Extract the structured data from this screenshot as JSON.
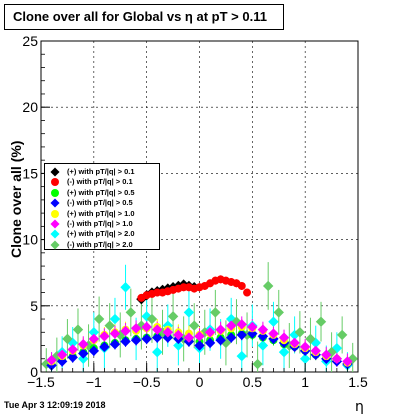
{
  "title": "Clone  over all for Global vs   η at pT > 0.11",
  "timestamp": "Tue Apr  3 12:09:19 2018",
  "chart_data": {
    "type": "scatter",
    "title": "Clone  over all for Global vs   η at pT > 0.11",
    "xlabel": "η",
    "ylabel": "Clone  over all (%)",
    "xlim": [
      -1.5,
      1.5
    ],
    "ylim": [
      0,
      25
    ],
    "x_ticks": [
      -1.5,
      -1,
      -0.5,
      0,
      0.5,
      1,
      1.5
    ],
    "x_tick_labels": [
      "−1.5",
      "−1",
      "−0.5",
      "0",
      "0.5",
      "1",
      "1.5"
    ],
    "y_ticks": [
      0,
      5,
      10,
      15,
      20,
      25
    ],
    "y_tick_labels": [
      "0",
      "5",
      "10",
      "15",
      "20",
      "25"
    ],
    "grid": true,
    "legend_position": "left-middle",
    "series": [
      {
        "name": "(+) with pT/|q| > 0.1",
        "color": "#000000",
        "marker": "diamond",
        "x": [
          -0.55,
          -0.5,
          -0.45,
          -0.4,
          -0.35,
          -0.3,
          -0.25,
          -0.2,
          -0.15,
          -0.1,
          -0.05
        ],
        "y": [
          5.5,
          5.8,
          6.0,
          6.1,
          6.2,
          6.3,
          6.4,
          6.5,
          6.6,
          6.5,
          6.4
        ],
        "err": [
          0.3,
          0.3,
          0.3,
          0.3,
          0.3,
          0.3,
          0.3,
          0.3,
          0.3,
          0.3,
          0.3
        ]
      },
      {
        "name": "(-) with pT/|q| > 0.1",
        "color": "#ff0000",
        "marker": "circle",
        "x": [
          -0.55,
          -0.5,
          -0.45,
          -0.4,
          -0.35,
          -0.3,
          -0.25,
          -0.2,
          -0.15,
          -0.1,
          -0.05,
          0.0,
          0.05,
          0.1,
          0.15,
          0.2,
          0.25,
          0.3,
          0.35,
          0.4,
          0.45
        ],
        "y": [
          5.6,
          5.8,
          5.9,
          6.0,
          6.0,
          6.1,
          6.2,
          6.3,
          6.4,
          6.4,
          6.3,
          6.4,
          6.5,
          6.7,
          6.9,
          7.0,
          6.9,
          6.8,
          6.7,
          6.5,
          6.0
        ],
        "err": [
          0.3,
          0.3,
          0.3,
          0.3,
          0.3,
          0.3,
          0.3,
          0.3,
          0.3,
          0.3,
          0.3,
          0.3,
          0.3,
          0.3,
          0.3,
          0.3,
          0.3,
          0.3,
          0.3,
          0.3,
          0.3
        ]
      },
      {
        "name": "(+) with pT/|q| > 0.5",
        "color": "#00ff00",
        "marker": "circle",
        "x": [
          -1.4,
          -1.3,
          -1.2,
          -1.1,
          -1.0,
          -0.9,
          -0.8,
          -0.7,
          -0.6,
          -0.5,
          -0.4,
          -0.3,
          -0.2,
          -0.1,
          0.0,
          0.1,
          0.2,
          0.3,
          0.4,
          0.5,
          0.6,
          0.7,
          0.8,
          0.9,
          1.0,
          1.1,
          1.2,
          1.3,
          1.4
        ],
        "y": [
          0.6,
          0.9,
          1.2,
          1.5,
          1.8,
          2.0,
          2.2,
          2.4,
          2.5,
          2.6,
          2.7,
          2.7,
          2.6,
          2.5,
          2.3,
          2.4,
          2.6,
          2.8,
          2.9,
          2.8,
          2.6,
          2.4,
          2.1,
          1.9,
          1.6,
          1.3,
          1.1,
          0.9,
          0.7
        ],
        "err": [
          0.4,
          0.4,
          0.4,
          0.4,
          0.4,
          0.4,
          0.4,
          0.4,
          0.4,
          0.4,
          0.4,
          0.4,
          0.4,
          0.4,
          0.4,
          0.4,
          0.4,
          0.4,
          0.4,
          0.4,
          0.4,
          0.4,
          0.4,
          0.4,
          0.4,
          0.4,
          0.4,
          0.4,
          0.4
        ]
      },
      {
        "name": "(-) with pT/|q| > 0.5",
        "color": "#0000ff",
        "marker": "diamond",
        "x": [
          -1.4,
          -1.3,
          -1.2,
          -1.1,
          -1.0,
          -0.9,
          -0.8,
          -0.7,
          -0.6,
          -0.5,
          -0.4,
          -0.3,
          -0.2,
          -0.1,
          0.0,
          0.1,
          0.2,
          0.3,
          0.4,
          0.5,
          0.6,
          0.7,
          0.8,
          0.9,
          1.0,
          1.1,
          1.2,
          1.3,
          1.4
        ],
        "y": [
          0.5,
          0.8,
          1.1,
          1.4,
          1.6,
          1.9,
          2.1,
          2.3,
          2.4,
          2.5,
          2.6,
          2.6,
          2.5,
          2.3,
          2.0,
          2.2,
          2.4,
          2.6,
          2.8,
          2.9,
          2.7,
          2.5,
          2.2,
          1.9,
          1.6,
          1.3,
          1.0,
          0.8,
          0.6
        ],
        "err": [
          0.4,
          0.4,
          0.4,
          0.4,
          0.4,
          0.4,
          0.4,
          0.4,
          0.4,
          0.4,
          0.4,
          0.4,
          0.4,
          0.4,
          0.4,
          0.4,
          0.4,
          0.4,
          0.4,
          0.4,
          0.4,
          0.4,
          0.4,
          0.4,
          0.4,
          0.4,
          0.4,
          0.4,
          0.4
        ]
      },
      {
        "name": "(+) with pT/|q| > 1.0",
        "color": "#ffff00",
        "marker": "circle",
        "x": [
          -1.4,
          -1.3,
          -1.2,
          -1.1,
          -1.0,
          -0.9,
          -0.8,
          -0.7,
          -0.6,
          -0.5,
          -0.4,
          -0.3,
          -0.2,
          -0.1,
          0.0,
          0.1,
          0.2,
          0.3,
          0.4,
          0.5,
          0.6,
          0.7,
          0.8,
          0.9,
          1.0,
          1.1,
          1.2,
          1.3,
          1.4
        ],
        "y": [
          0.8,
          1.2,
          1.6,
          2.0,
          2.4,
          2.8,
          3.0,
          3.2,
          3.1,
          3.3,
          3.4,
          3.2,
          3.0,
          2.9,
          2.8,
          2.9,
          3.1,
          3.3,
          3.4,
          3.3,
          3.1,
          2.8,
          2.4,
          2.1,
          1.8,
          1.5,
          1.2,
          1.0,
          0.7
        ],
        "err": [
          0.6,
          0.6,
          0.6,
          0.6,
          0.6,
          0.6,
          0.6,
          0.6,
          0.6,
          0.6,
          0.6,
          0.6,
          0.6,
          0.6,
          0.6,
          0.6,
          0.6,
          0.6,
          0.6,
          0.6,
          0.6,
          0.6,
          0.6,
          0.6,
          0.6,
          0.6,
          0.6,
          0.6,
          0.6
        ]
      },
      {
        "name": "(-) with pT/|q| > 1.0",
        "color": "#ff00ff",
        "marker": "diamond",
        "x": [
          -1.4,
          -1.3,
          -1.2,
          -1.1,
          -1.0,
          -0.9,
          -0.8,
          -0.7,
          -0.6,
          -0.5,
          -0.4,
          -0.3,
          -0.2,
          -0.1,
          0.0,
          0.1,
          0.2,
          0.3,
          0.4,
          0.5,
          0.6,
          0.7,
          0.8,
          0.9,
          1.0,
          1.1,
          1.2,
          1.3,
          1.4
        ],
        "y": [
          0.9,
          1.3,
          1.7,
          2.1,
          2.5,
          2.7,
          2.9,
          3.1,
          3.3,
          3.4,
          3.2,
          3.0,
          2.8,
          2.6,
          2.7,
          3.0,
          3.2,
          3.5,
          3.6,
          3.4,
          3.2,
          2.9,
          2.6,
          2.2,
          1.9,
          1.6,
          1.3,
          1.0,
          0.8
        ],
        "err": [
          0.6,
          0.6,
          0.6,
          0.6,
          0.6,
          0.6,
          0.6,
          0.6,
          0.6,
          0.6,
          0.6,
          0.6,
          0.6,
          0.6,
          0.6,
          0.6,
          0.6,
          0.6,
          0.6,
          0.6,
          0.6,
          0.6,
          0.6,
          0.6,
          0.6,
          0.6,
          0.6,
          0.6,
          0.6
        ]
      },
      {
        "name": "(+) with pT/|q| > 2.0",
        "color": "#00ffff",
        "marker": "diamond",
        "x": [
          -1.4,
          -1.3,
          -1.2,
          -1.1,
          -1.0,
          -0.9,
          -0.8,
          -0.7,
          -0.6,
          -0.5,
          -0.4,
          -0.3,
          -0.2,
          -0.1,
          0.0,
          0.1,
          0.2,
          0.3,
          0.4,
          0.5,
          0.6,
          0.7,
          0.8,
          0.9,
          1.0,
          1.1,
          1.2,
          1.3,
          1.4
        ],
        "y": [
          0.5,
          1.5,
          2.2,
          1.0,
          3.0,
          1.8,
          4.0,
          6.4,
          2.5,
          4.2,
          1.5,
          3.5,
          2.0,
          4.5,
          1.8,
          3.2,
          2.5,
          4.0,
          1.2,
          3.5,
          2.0,
          3.8,
          1.5,
          2.8,
          1.0,
          2.2,
          0.8,
          1.8,
          0.5
        ],
        "err": [
          1.0,
          1.2,
          1.2,
          1.3,
          1.5,
          1.5,
          1.6,
          1.7,
          1.6,
          1.7,
          1.6,
          1.6,
          1.5,
          1.6,
          1.5,
          1.6,
          1.5,
          1.6,
          1.5,
          1.6,
          1.5,
          1.5,
          1.4,
          1.4,
          1.3,
          1.3,
          1.2,
          1.2,
          1.0
        ]
      },
      {
        "name": "(-) with pT/|q| > 2.0",
        "color": "#66cc66",
        "marker": "diamond",
        "x": [
          -1.45,
          -1.35,
          -1.25,
          -1.15,
          -1.05,
          -0.95,
          -0.85,
          -0.75,
          -0.65,
          -0.55,
          -0.45,
          -0.35,
          -0.25,
          -0.15,
          -0.05,
          0.05,
          0.15,
          0.25,
          0.35,
          0.45,
          0.55,
          0.65,
          0.75,
          0.85,
          0.95,
          1.05,
          1.15,
          1.25,
          1.35,
          1.45
        ],
        "y": [
          0.6,
          1.2,
          2.5,
          3.2,
          2.0,
          4.0,
          3.5,
          2.8,
          4.5,
          3.5,
          4.0,
          3.0,
          4.2,
          2.5,
          3.5,
          3.0,
          4.5,
          2.2,
          3.8,
          2.8,
          0.6,
          6.5,
          4.5,
          2.0,
          3.0,
          2.5,
          3.8,
          1.5,
          2.8,
          1.0
        ],
        "err": [
          1.2,
          1.4,
          1.5,
          1.6,
          1.6,
          1.7,
          1.7,
          1.7,
          1.8,
          1.8,
          1.8,
          1.7,
          1.7,
          1.7,
          1.7,
          1.7,
          1.7,
          1.7,
          1.7,
          1.7,
          1.7,
          1.8,
          1.7,
          1.7,
          1.6,
          1.6,
          1.5,
          1.5,
          1.4,
          1.2
        ]
      }
    ]
  }
}
